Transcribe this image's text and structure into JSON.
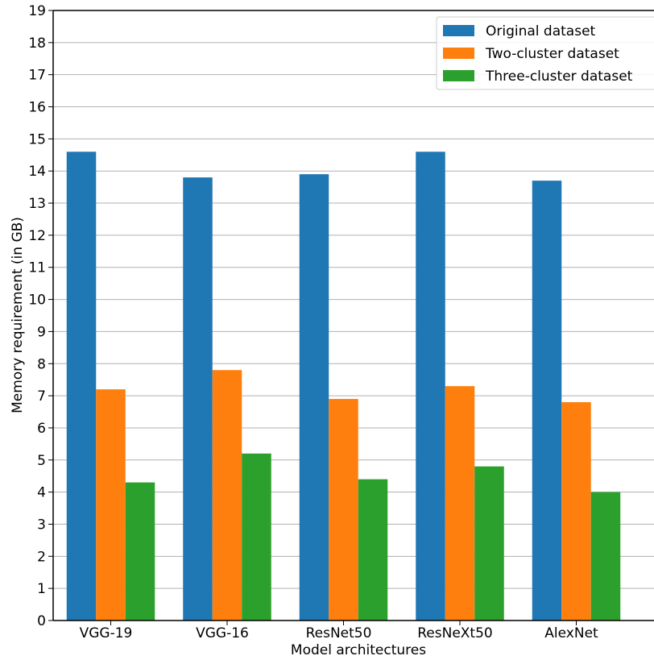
{
  "chart_data": {
    "type": "bar",
    "title": "",
    "xlabel": "Model architectures",
    "ylabel": "Memory requirement (in GB)",
    "categories": [
      "VGG-19",
      "VGG-16",
      "ResNet50",
      "ResNeXt50",
      "AlexNet"
    ],
    "series": [
      {
        "name": "Original dataset",
        "color": "#1f77b4",
        "values": [
          14.6,
          13.8,
          13.9,
          14.6,
          13.7
        ]
      },
      {
        "name": "Two-cluster dataset",
        "color": "#ff7f0e",
        "values": [
          7.2,
          7.8,
          6.9,
          7.3,
          6.8
        ]
      },
      {
        "name": "Three-cluster dataset",
        "color": "#2ca02c",
        "values": [
          4.3,
          5.2,
          4.4,
          4.8,
          4.0
        ]
      }
    ],
    "ylim": [
      0,
      19
    ],
    "yticks": [
      0,
      1,
      2,
      3,
      4,
      5,
      6,
      7,
      8,
      9,
      10,
      11,
      12,
      13,
      14,
      15,
      16,
      17,
      18,
      19
    ],
    "grid": "horizontal",
    "legend_position": "top-right"
  }
}
